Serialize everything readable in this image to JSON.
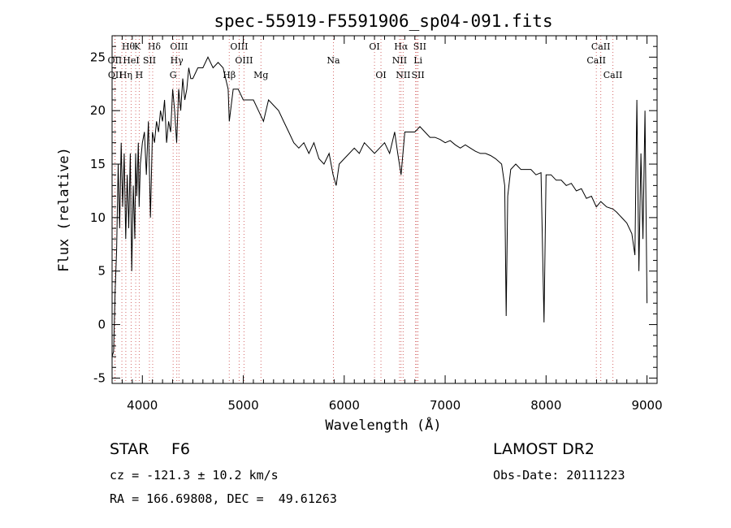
{
  "chart_data": {
    "type": "line",
    "title": "spec-55919-F5591906_sp04-091.fits",
    "xlabel": "Wavelength (Å)",
    "ylabel": "Flux (relative)",
    "xlim": [
      3700,
      9100
    ],
    "ylim": [
      -5.5,
      27
    ],
    "xticks": [
      4000,
      5000,
      6000,
      7000,
      8000,
      9000
    ],
    "yticks": [
      -5,
      0,
      5,
      10,
      15,
      20,
      25
    ],
    "grid": false,
    "series": [
      {
        "x": [
          3700,
          3715,
          3730,
          3745,
          3760,
          3775,
          3790,
          3805,
          3820,
          3835,
          3850,
          3865,
          3880,
          3895,
          3910,
          3925,
          3933,
          3945,
          3960,
          3968,
          3980,
          4000,
          4020,
          4040,
          4060,
          4080,
          4100,
          4120,
          4140,
          4160,
          4180,
          4200,
          4220,
          4240,
          4260,
          4280,
          4300,
          4320,
          4340,
          4360,
          4380,
          4400,
          4420,
          4440,
          4460,
          4480,
          4500,
          4550,
          4600,
          4650,
          4700,
          4750,
          4800,
          4850,
          4861,
          4900,
          4950,
          5000,
          5050,
          5100,
          5150,
          5200,
          5250,
          5300,
          5350,
          5400,
          5450,
          5500,
          5550,
          5600,
          5650,
          5700,
          5750,
          5800,
          5850,
          5890,
          5920,
          5950,
          6000,
          6050,
          6100,
          6150,
          6200,
          6250,
          6300,
          6350,
          6400,
          6450,
          6500,
          6530,
          6563,
          6600,
          6650,
          6700,
          6750,
          6800,
          6850,
          6900,
          6950,
          7000,
          7050,
          7100,
          7150,
          7200,
          7250,
          7300,
          7350,
          7400,
          7450,
          7500,
          7560,
          7590,
          7605,
          7620,
          7650,
          7700,
          7750,
          7800,
          7850,
          7900,
          7950,
          7980,
          8000,
          8050,
          8100,
          8150,
          8200,
          8250,
          8300,
          8350,
          8400,
          8450,
          8498,
          8542,
          8600,
          8662,
          8700,
          8750,
          8800,
          8850,
          8880,
          8900,
          8920,
          8940,
          8960,
          8980,
          9000
        ],
        "y": [
          -3,
          -2.5,
          3,
          7,
          15,
          9,
          17,
          11,
          16,
          8,
          14,
          9,
          16,
          5,
          13,
          8,
          16,
          12,
          17,
          11,
          15,
          17,
          18,
          14,
          19,
          10,
          18,
          17,
          19,
          18,
          20,
          19,
          21,
          17,
          19,
          18,
          22,
          20,
          17,
          22,
          20,
          23,
          21,
          22,
          24,
          23,
          23,
          24,
          24,
          25,
          24,
          24.5,
          24,
          22,
          19,
          22,
          22,
          21,
          21,
          21,
          20,
          19,
          21,
          20.5,
          20,
          19,
          18,
          17,
          16.5,
          17,
          16,
          17,
          15.5,
          15,
          16,
          14,
          13,
          15,
          15.5,
          16,
          16.5,
          16,
          17,
          16.5,
          16,
          16.5,
          17,
          16,
          18,
          16,
          14,
          18,
          18,
          18,
          18.5,
          18,
          17.5,
          17.5,
          17.3,
          17,
          17.2,
          16.8,
          16.5,
          16.8,
          16.5,
          16.2,
          16,
          16,
          15.8,
          15.5,
          15,
          13,
          0.8,
          12,
          14.5,
          15,
          14.5,
          14.5,
          14.5,
          14,
          14.2,
          0.2,
          14,
          14,
          13.5,
          13.5,
          13,
          13.2,
          12.5,
          12.7,
          11.8,
          12,
          11,
          11.5,
          11,
          10.8,
          10.5,
          10,
          9.5,
          8.5,
          6.5,
          21,
          5,
          16,
          8,
          20,
          2
        ]
      }
    ],
    "lines": [
      {
        "name": "Hθ",
        "x": 3797,
        "row": 0,
        "dx": 8
      },
      {
        "name": "K",
        "x": 3934,
        "row": 0,
        "dx": 2
      },
      {
        "name": "Hδ",
        "x": 4102,
        "row": 0,
        "dx": 2
      },
      {
        "name": "OIII",
        "x": 4363,
        "row": 0,
        "dx": 0
      },
      {
        "name": "OIII",
        "x": 4959,
        "row": 0,
        "dx": 0
      },
      {
        "name": "OI",
        "x": 6300,
        "row": 0,
        "dx": 0
      },
      {
        "name": "Hα",
        "x": 6563,
        "row": 0,
        "dx": 0
      },
      {
        "name": "SII",
        "x": 6717,
        "row": 0,
        "dx": 4
      },
      {
        "name": "CaII",
        "x": 8542,
        "row": 0,
        "dx": 0
      },
      {
        "name": "OII",
        "x": 3727,
        "row": 1,
        "dx": 0
      },
      {
        "name": "HeI",
        "x": 3889,
        "row": 1,
        "dx": 0
      },
      {
        "name": "SII",
        "x": 4070,
        "row": 1,
        "dx": 0
      },
      {
        "name": "Hγ",
        "x": 4341,
        "row": 1,
        "dx": 0
      },
      {
        "name": "OIII",
        "x": 5007,
        "row": 1,
        "dx": 0
      },
      {
        "name": "Na",
        "x": 5893,
        "row": 1,
        "dx": 0
      },
      {
        "name": "NII",
        "x": 6548,
        "row": 1,
        "dx": 0
      },
      {
        "name": "Li",
        "x": 6707,
        "row": 1,
        "dx": 3
      },
      {
        "name": "CaII",
        "x": 8498,
        "row": 1,
        "dx": 0
      },
      {
        "name": "OII",
        "x": 3730,
        "row": 2,
        "dx": 0
      },
      {
        "name": "Hη",
        "x": 3836,
        "row": 2,
        "dx": 0
      },
      {
        "name": "H",
        "x": 3969,
        "row": 2,
        "dx": 0
      },
      {
        "name": "G",
        "x": 4305,
        "row": 2,
        "dx": 0
      },
      {
        "name": "Hβ",
        "x": 4861,
        "row": 2,
        "dx": 0
      },
      {
        "name": "Mg",
        "x": 5175,
        "row": 2,
        "dx": 0
      },
      {
        "name": "OI",
        "x": 6364,
        "row": 2,
        "dx": 0
      },
      {
        "name": "NII",
        "x": 6584,
        "row": 2,
        "dx": 0
      },
      {
        "name": "SII",
        "x": 6731,
        "row": 2,
        "dx": 0
      },
      {
        "name": "CaII",
        "x": 8662,
        "row": 2,
        "dx": 0
      }
    ]
  },
  "info": {
    "class_label": "STAR",
    "subclass": "F6",
    "survey": "LAMOST DR2",
    "cz": "cz = -121.3 ± 10.2 km/s",
    "obs_date": "Obs-Date: 20111223",
    "coords": "RA = 166.69808, DEC =  49.61263"
  },
  "colors": {
    "line_markers": "#d46a6a",
    "spectrum": "#000000",
    "axes": "#000000"
  }
}
